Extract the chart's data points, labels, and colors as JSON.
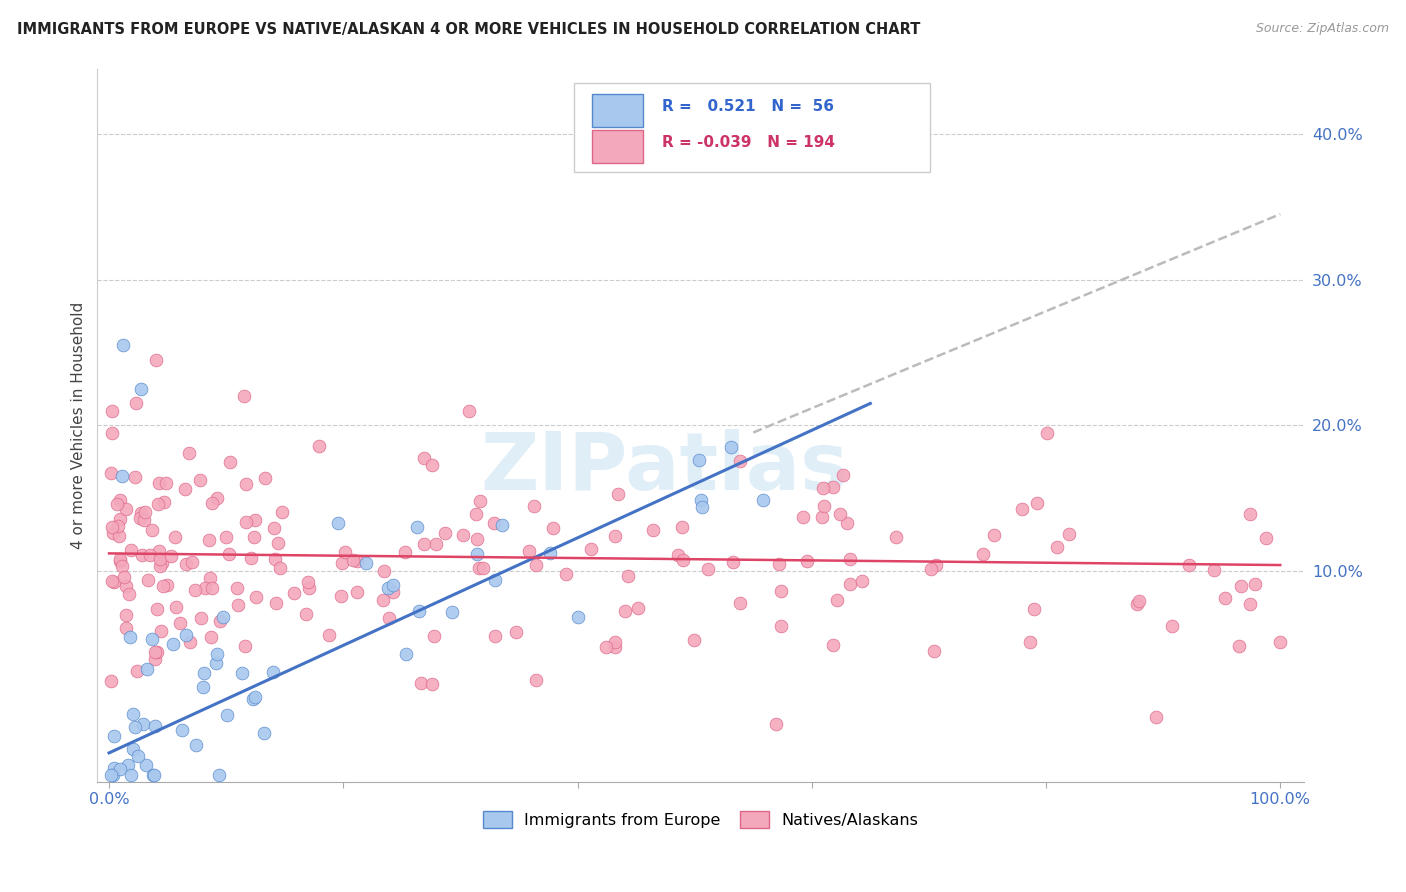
{
  "title": "IMMIGRANTS FROM EUROPE VS NATIVE/ALASKAN 4 OR MORE VEHICLES IN HOUSEHOLD CORRELATION CHART",
  "source": "Source: ZipAtlas.com",
  "ylabel": "4 or more Vehicles in Household",
  "ytick_values": [
    0.0,
    0.1,
    0.2,
    0.3,
    0.4
  ],
  "ytick_labels": [
    "",
    "10.0%",
    "20.0%",
    "30.0%",
    "40.0%"
  ],
  "xlim": [
    -0.01,
    1.02
  ],
  "ylim": [
    -0.045,
    0.445
  ],
  "blue_R": 0.521,
  "blue_N": 56,
  "pink_R": -0.039,
  "pink_N": 194,
  "legend1_label": "Immigrants from Europe",
  "legend2_label": "Natives/Alaskans",
  "blue_color": "#A8C8EE",
  "pink_color": "#F4A8BC",
  "blue_edge_color": "#5588CC",
  "pink_edge_color": "#DD6688",
  "blue_line_color": "#4472C4",
  "pink_line_color": "#DD4466",
  "dash_line_color": "#BBBBBB",
  "tick_label_color": "#4472C4",
  "background_color": "#FFFFFF",
  "watermark_text": "ZIPatlas",
  "watermark_color": "#C8E0F4",
  "blue_line_start_x": 0.0,
  "blue_line_start_y": -0.025,
  "blue_line_end_x": 0.65,
  "blue_line_end_y": 0.215,
  "dash_line_start_x": 0.55,
  "dash_line_start_y": 0.195,
  "dash_line_end_x": 1.0,
  "dash_line_end_y": 0.345,
  "pink_line_start_x": 0.0,
  "pink_line_start_y": 0.112,
  "pink_line_end_x": 1.0,
  "pink_line_end_y": 0.104
}
